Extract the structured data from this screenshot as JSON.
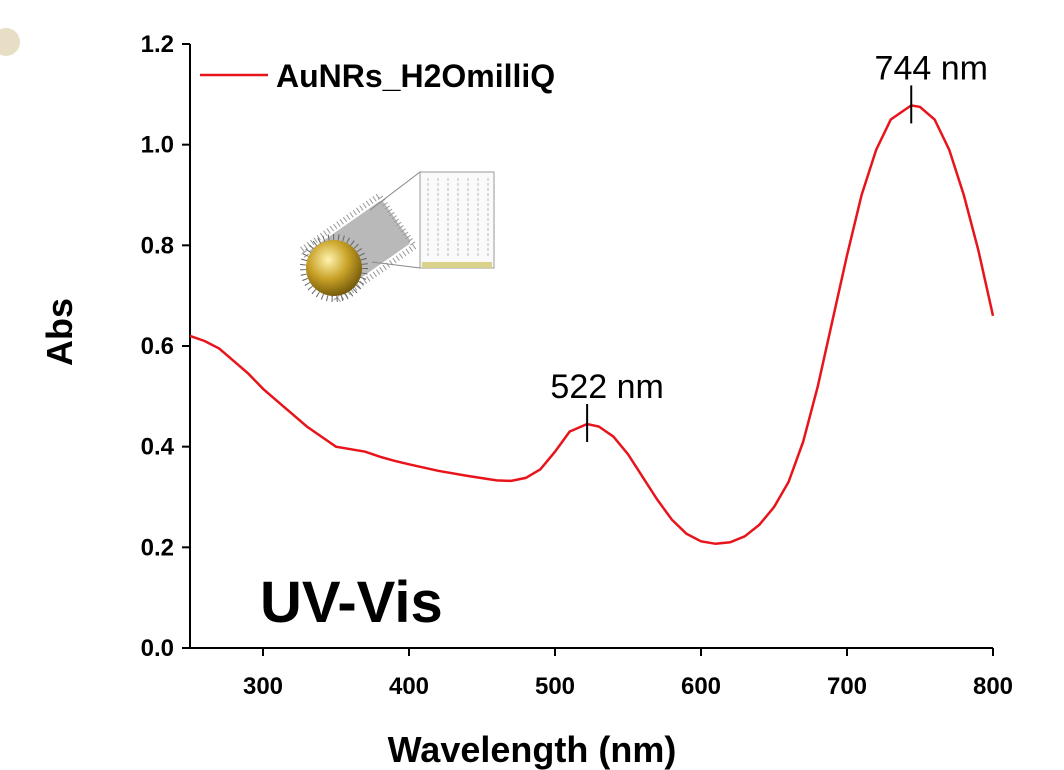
{
  "chart_data": {
    "type": "line",
    "x_label": "Wavelength (nm)",
    "y_label": "Abs",
    "xlim": [
      250,
      800
    ],
    "ylim": [
      0,
      1.2
    ],
    "xticks": [
      300,
      400,
      500,
      600,
      700,
      800
    ],
    "yticks": [
      {
        "value": 0,
        "label": "0.0"
      },
      0.2,
      0.4,
      0.6,
      0.8,
      {
        "value": 1,
        "label": "1.0"
      },
      1.2
    ],
    "legend": "upper left",
    "series": [
      {
        "name": "AuNRs_H2OmilliQ",
        "color": "#e8141c",
        "x": [
          250,
          260,
          270,
          280,
          290,
          300,
          310,
          320,
          330,
          340,
          350,
          360,
          370,
          380,
          390,
          400,
          420,
          440,
          460,
          470,
          480,
          490,
          500,
          510,
          522,
          530,
          540,
          550,
          560,
          570,
          580,
          590,
          600,
          610,
          620,
          630,
          640,
          650,
          660,
          670,
          680,
          690,
          700,
          710,
          720,
          730,
          744,
          750,
          760,
          770,
          780,
          790,
          800
        ],
        "values": [
          0.62,
          0.61,
          0.595,
          0.57,
          0.545,
          0.515,
          0.49,
          0.465,
          0.44,
          0.42,
          0.4,
          0.395,
          0.39,
          0.38,
          0.372,
          0.365,
          0.352,
          0.342,
          0.333,
          0.332,
          0.338,
          0.355,
          0.39,
          0.43,
          0.445,
          0.44,
          0.42,
          0.385,
          0.34,
          0.295,
          0.255,
          0.227,
          0.212,
          0.207,
          0.21,
          0.222,
          0.245,
          0.28,
          0.33,
          0.41,
          0.52,
          0.65,
          0.78,
          0.9,
          0.99,
          1.05,
          1.078,
          1.075,
          1.05,
          0.99,
          0.9,
          0.79,
          0.66
        ]
      }
    ],
    "annotations": [
      {
        "text": "522 nm",
        "x": 522,
        "y": 0.445
      },
      {
        "text": "744 nm",
        "x": 744,
        "y": 1.078
      },
      {
        "text": "UV-Vis"
      }
    ]
  }
}
